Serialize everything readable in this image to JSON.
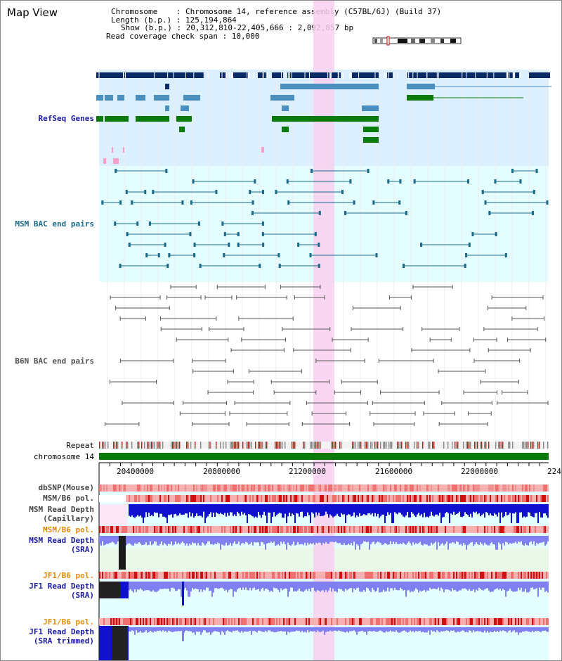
{
  "view_title": "Map View",
  "info": {
    "chromosome": "Chromosome    : Chromosome 14, reference assembly (C57BL/6J) (Build 37)",
    "length": "Length (b.p.) : 125,194,864",
    "show": "Show (b.p.) : 20,312,810-22,405,666 : 2,092,857 bp",
    "coverage": "Read coverage check span : 10,000"
  },
  "tracks": {
    "refseq": "RefSeq Genes",
    "msm_bac": "MSM BAC end pairs",
    "b6n_bac": "B6N BAC end pairs",
    "repeat": "Repeat",
    "chromosome": "chromosome 14",
    "dbsnp": "dbSNP(Mouse)",
    "msm_pol_1": "MSM/B6 pol.",
    "msm_depth_cap": "MSM Read Depth\n(Capillary)",
    "msm_pol_2": "MSM/B6 pol.",
    "msm_depth_sra": "MSM Read Depth\n(SRA)",
    "jf1_pol_1": "JF1/B6 pol.",
    "jf1_depth_sra": "JF1 Read Depth\n(SRA)",
    "jf1_pol_2": "JF1/B6 pol.",
    "jf1_depth_trim": "JF1 Read Depth\n(SRA trimmed)"
  },
  "axis_ticks": [
    "20400000",
    "20800000",
    "21200000",
    "21600000",
    "22000000",
    "224"
  ],
  "colors": {
    "gene_dark": "#0a2a66",
    "gene_mid": "#4a8fc0",
    "gene_green": "#0a7a0a",
    "msm_pair": "#1a6a8a",
    "b6n_pair": "#555555",
    "highlight": "#f8d0f0",
    "chrom_bar": "#0a7a0a",
    "title_blue": "#1a1aa0",
    "title_orange": "#e08a00",
    "title_teal": "#1a6a8a"
  }
}
